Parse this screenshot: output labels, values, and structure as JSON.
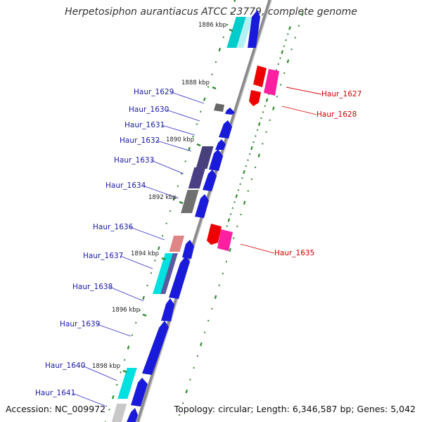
{
  "title": "Herpetosiphon aurantiacus ATCC 23779, complete genome",
  "accession_text": "Accession: NC_009972",
  "topology_text": "Topology: circular; Length: 6,346,587 bp; Genes: 5,042",
  "colors": {
    "backbone": "#999999",
    "tick": "#2e8b2e",
    "label_left": "#1a1aa6",
    "label_right": "#cc0000",
    "kbp_text": "#222222"
  },
  "kbp_marks": [
    {
      "label": "1886 kbp"
    },
    {
      "label": "1888 kbp"
    },
    {
      "label": "1890 kbp"
    },
    {
      "label": "1892 kbp"
    },
    {
      "label": "1894 kbp"
    },
    {
      "label": "1896 kbp"
    },
    {
      "label": "1898 kbp"
    }
  ],
  "genes_left": [
    {
      "label": "Haur_1629"
    },
    {
      "label": "Haur_1630"
    },
    {
      "label": "Haur_1631"
    },
    {
      "label": "Haur_1632"
    },
    {
      "label": "Haur_1633"
    },
    {
      "label": "Haur_1634"
    },
    {
      "label": "Haur_1636"
    },
    {
      "label": "Haur_1637"
    },
    {
      "label": "Haur_1638"
    },
    {
      "label": "Haur_1639"
    },
    {
      "label": "Haur_1640"
    },
    {
      "label": "Haur_1641"
    }
  ],
  "genes_right": [
    {
      "label": "Haur_1627"
    },
    {
      "label": "Haur_1628"
    },
    {
      "label": "Haur_1635"
    }
  ]
}
